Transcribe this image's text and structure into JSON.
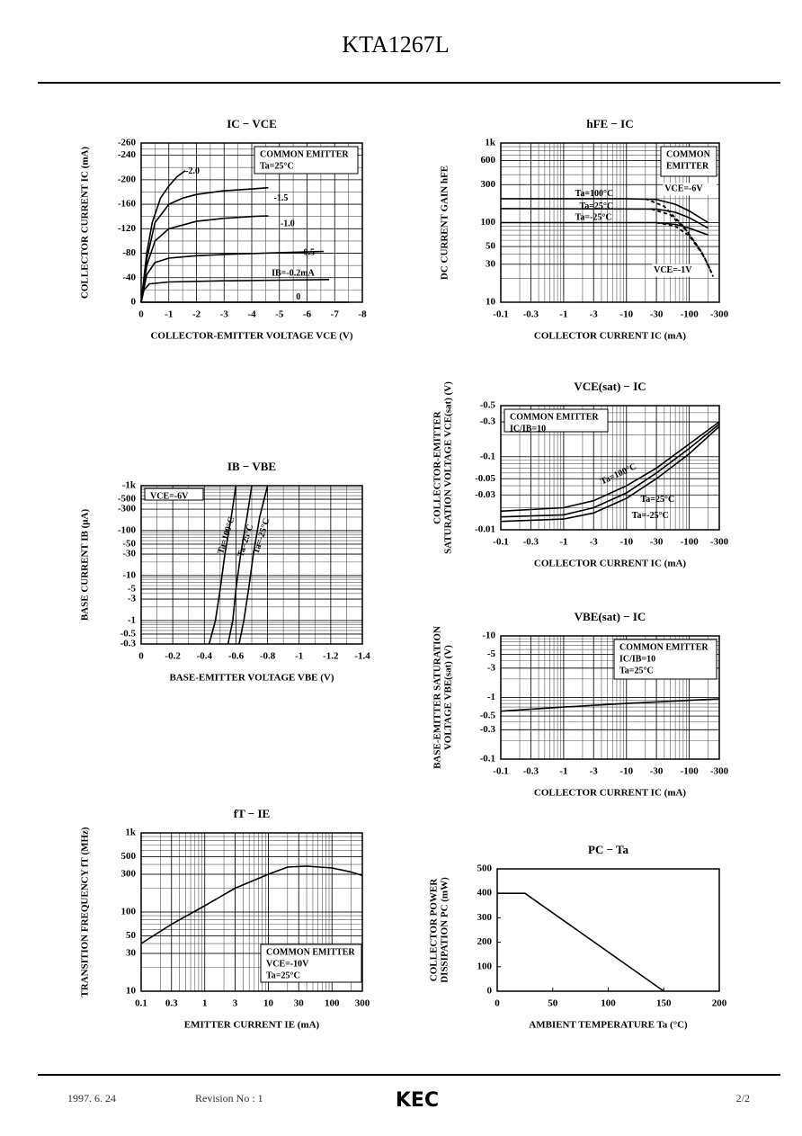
{
  "header": {
    "title": "KTA1267L"
  },
  "footer": {
    "date": "1997. 6. 24",
    "revision": "Revision No : 1",
    "logo": "KEC",
    "page": "2/2"
  },
  "chart_data": [
    {
      "type": "line",
      "title": "IC − VCE",
      "color": "#000000",
      "grid": true,
      "xlabel": "COLLECTOR-EMITTER VOLTAGE VCE (V)",
      "ylabel": [
        "COLLECTOR CURRENT IC (mA)"
      ],
      "xlim": [
        0,
        -8
      ],
      "ylim": [
        0,
        -260
      ],
      "xticks": [
        0,
        -1,
        -2,
        -3,
        -4,
        -5,
        -6,
        -7,
        -8
      ],
      "yticks": [
        0,
        -40,
        -80,
        -120,
        -160,
        -200,
        -240,
        -260
      ],
      "notes": [
        "COMMON EMITTER",
        "Ta=25°C"
      ],
      "series": [
        {
          "name": "-2.0",
          "x": [
            0,
            -0.2,
            -0.4,
            -0.7,
            -1,
            -1.3,
            -1.6
          ],
          "values": [
            0,
            -80,
            -130,
            -170,
            -190,
            -205,
            -215
          ]
        },
        {
          "name": "-1.5",
          "x": [
            0,
            -0.2,
            -0.5,
            -1,
            -1.5,
            -2,
            -3,
            -4,
            -4.6
          ],
          "values": [
            0,
            -70,
            -130,
            -160,
            -170,
            -176,
            -182,
            -185,
            -187
          ]
        },
        {
          "name": "-1.0",
          "x": [
            0,
            -0.2,
            -0.5,
            -1,
            -2,
            -3,
            -4,
            -4.6
          ],
          "values": [
            0,
            -60,
            -100,
            -120,
            -132,
            -137,
            -140,
            -141
          ]
        },
        {
          "name": "-0.5",
          "x": [
            0,
            -0.2,
            -0.5,
            -1,
            -2,
            -3,
            -5,
            -6.6
          ],
          "values": [
            0,
            -45,
            -65,
            -72,
            -76,
            -78,
            -81,
            -83
          ]
        },
        {
          "name": "IB=-0.2mA",
          "x": [
            0,
            -0.1,
            -0.3,
            -1,
            -3,
            -5,
            -6.8
          ],
          "values": [
            0,
            -20,
            -30,
            -33,
            -35,
            -36,
            -37
          ]
        },
        {
          "name": "0",
          "x": [
            0,
            -7.5
          ],
          "values": [
            0,
            0
          ]
        }
      ]
    },
    {
      "type": "line",
      "title": "hFE − IC",
      "color": "#000000",
      "grid": true,
      "xlog": true,
      "ylog": true,
      "xlabel": "COLLECTOR CURRENT IC (mA)",
      "ylabel": [
        "DC CURRENT GAIN hFE"
      ],
      "xlim": [
        -0.1,
        -300
      ],
      "ylim": [
        10,
        1000
      ],
      "xticks": [
        -0.1,
        -0.3,
        -1,
        -3,
        -10,
        -30,
        -100,
        -300
      ],
      "yticks": [
        10,
        30,
        50,
        100,
        300,
        600,
        {
          "value": 1000,
          "label": "1k"
        }
      ],
      "notes": [
        "COMMON",
        "EMITTER"
      ],
      "annotations": [
        "VCE=-6V",
        "VCE=-1V"
      ],
      "series": [
        {
          "name": "Ta=100°C",
          "x": [
            -0.1,
            -10,
            -30,
            -60,
            -100,
            -200
          ],
          "values": [
            200,
            200,
            195,
            170,
            140,
            100
          ]
        },
        {
          "name": "Ta=25°C",
          "x": [
            -0.1,
            -30,
            -60,
            -100,
            -200
          ],
          "values": [
            150,
            148,
            135,
            115,
            85
          ]
        },
        {
          "name": "Ta=-25°C",
          "x": [
            -0.1,
            -30,
            -60,
            -100,
            -200
          ],
          "values": [
            100,
            100,
            95,
            85,
            70
          ]
        },
        {
          "dash": true,
          "x": [
            -20,
            -40,
            -80,
            -150,
            -220
          ],
          "values": [
            200,
            160,
            90,
            45,
            25
          ]
        },
        {
          "dash": true,
          "x": [
            -25,
            -50,
            -90,
            -160,
            -230
          ],
          "values": [
            148,
            125,
            80,
            42,
            23
          ]
        },
        {
          "dash": true,
          "x": [
            -30,
            -60,
            -100,
            -170,
            -240
          ],
          "values": [
            100,
            90,
            68,
            38,
            21
          ]
        }
      ]
    },
    {
      "type": "line",
      "title": "IB − VBE",
      "color": "#000000",
      "grid": true,
      "ylog": true,
      "xlabel": "BASE-EMITTER VOLTAGE VBE (V)",
      "ylabel": [
        "BASE CURRENT IB (μA)"
      ],
      "xlim": [
        0,
        -1.4
      ],
      "ylim": [
        -0.3,
        -1000
      ],
      "xticks": [
        0,
        -0.2,
        -0.4,
        -0.6,
        -0.8,
        -1.0,
        -1.2,
        -1.4
      ],
      "yticks": [
        -0.3,
        -0.5,
        -1,
        -3,
        -5,
        -10,
        -30,
        -50,
        -100,
        -300,
        -500,
        {
          "value": -1000,
          "label": "-1k"
        }
      ],
      "notes": [
        "VCE=-6V"
      ],
      "series": [
        {
          "name": "Ta=100°C",
          "x": [
            -0.43,
            -0.47,
            -0.5,
            -0.53,
            -0.57,
            -0.6
          ],
          "values": [
            -0.3,
            -1,
            -5,
            -30,
            -200,
            -1000
          ]
        },
        {
          "name": "Ta=25°C",
          "x": [
            -0.55,
            -0.58,
            -0.6,
            -0.63,
            -0.67,
            -0.7
          ],
          "values": [
            -0.3,
            -1,
            -5,
            -30,
            -200,
            -1000
          ]
        },
        {
          "name": "Ta=-25°C",
          "x": [
            -0.62,
            -0.65,
            -0.68,
            -0.71,
            -0.75,
            -0.8
          ],
          "values": [
            -0.3,
            -1,
            -5,
            -30,
            -200,
            -1000
          ]
        }
      ]
    },
    {
      "type": "line",
      "title": "VCE(sat) − IC",
      "color": "#000000",
      "grid": true,
      "xlog": true,
      "ylog": true,
      "xlabel": "COLLECTOR CURRENT IC (mA)",
      "ylabel": [
        "COLLECTOR-EMITTER",
        "SATURATION VOLTAGE VCE(sat) (V)"
      ],
      "xlim": [
        -0.1,
        -300
      ],
      "ylim": [
        -0.01,
        -0.5
      ],
      "xticks": [
        -0.1,
        -0.3,
        -1,
        -3,
        -10,
        -30,
        -100,
        -300
      ],
      "yticks": [
        -0.01,
        -0.03,
        -0.05,
        -0.1,
        -0.3,
        -0.5
      ],
      "notes": [
        "COMMON EMITTER",
        "IC/IB=10"
      ],
      "series": [
        {
          "name": "Ta=100°C",
          "x": [
            -0.1,
            -1,
            -3,
            -10,
            -30,
            -100,
            -300
          ],
          "values": [
            -0.018,
            -0.02,
            -0.025,
            -0.04,
            -0.07,
            -0.15,
            -0.3
          ]
        },
        {
          "name": "Ta=25°C",
          "x": [
            -0.1,
            -1,
            -3,
            -10,
            -30,
            -100,
            -300
          ],
          "values": [
            -0.015,
            -0.016,
            -0.02,
            -0.032,
            -0.06,
            -0.13,
            -0.28
          ]
        },
        {
          "name": "Ta=-25°C",
          "x": [
            -0.1,
            -1,
            -3,
            -10,
            -30,
            -100,
            -300
          ],
          "values": [
            -0.013,
            -0.014,
            -0.017,
            -0.027,
            -0.05,
            -0.11,
            -0.26
          ]
        }
      ]
    },
    {
      "type": "line",
      "title": "VBE(sat) − IC",
      "color": "#000000",
      "grid": true,
      "xlog": true,
      "ylog": true,
      "xlabel": "COLLECTOR CURRENT IC (mA)",
      "ylabel": [
        "BASE-EMITTER SATURATION",
        "VOLTAGE VBE(sat) (V)"
      ],
      "xlim": [
        -0.1,
        -300
      ],
      "ylim": [
        -0.1,
        -10
      ],
      "xticks": [
        -0.1,
        -0.3,
        -1,
        -3,
        -10,
        -30,
        -100,
        -300
      ],
      "yticks": [
        -0.1,
        -0.3,
        -0.5,
        -1,
        -3,
        -5,
        -10
      ],
      "notes": [
        "COMMON EMITTER",
        "IC/IB=10",
        "Ta=25°C"
      ],
      "series": [
        {
          "x": [
            -0.1,
            -1,
            -10,
            -100,
            -300
          ],
          "values": [
            -0.6,
            -0.7,
            -0.8,
            -0.9,
            -0.95
          ]
        }
      ]
    },
    {
      "type": "line",
      "title": "fT − IE",
      "color": "#000000",
      "grid": true,
      "xlog": true,
      "ylog": true,
      "xlabel": "EMITTER CURRENT IE (mA)",
      "ylabel": [
        "TRANSITION FREQUENCY fT (MHz)"
      ],
      "xlim": [
        0.1,
        300
      ],
      "ylim": [
        10,
        1000
      ],
      "xticks": [
        0.1,
        0.3,
        1,
        3,
        10,
        30,
        100,
        300
      ],
      "yticks": [
        10,
        30,
        50,
        100,
        300,
        500,
        {
          "value": 1000,
          "label": "1k"
        }
      ],
      "notes": [
        "COMMON EMITTER",
        "VCE=-10V",
        "Ta=25°C"
      ],
      "series": [
        {
          "x": [
            0.1,
            0.3,
            1,
            3,
            10,
            20,
            40,
            100,
            200,
            300
          ],
          "values": [
            40,
            70,
            120,
            200,
            300,
            370,
            380,
            360,
            320,
            290
          ]
        }
      ]
    },
    {
      "type": "line",
      "title": "PC − Ta",
      "color": "#000000",
      "grid": false,
      "xlabel": "AMBIENT TEMPERATURE Ta (°C)",
      "ylabel": [
        "COLLECTOR POWER",
        "DISSIPATION PC (mW)"
      ],
      "xlim": [
        0,
        200
      ],
      "ylim": [
        0,
        500
      ],
      "xticks": [
        0,
        50,
        100,
        150,
        200
      ],
      "yticks": [
        0,
        100,
        200,
        300,
        400,
        500
      ],
      "series": [
        {
          "x": [
            0,
            25,
            150
          ],
          "values": [
            400,
            400,
            0
          ]
        }
      ]
    }
  ]
}
